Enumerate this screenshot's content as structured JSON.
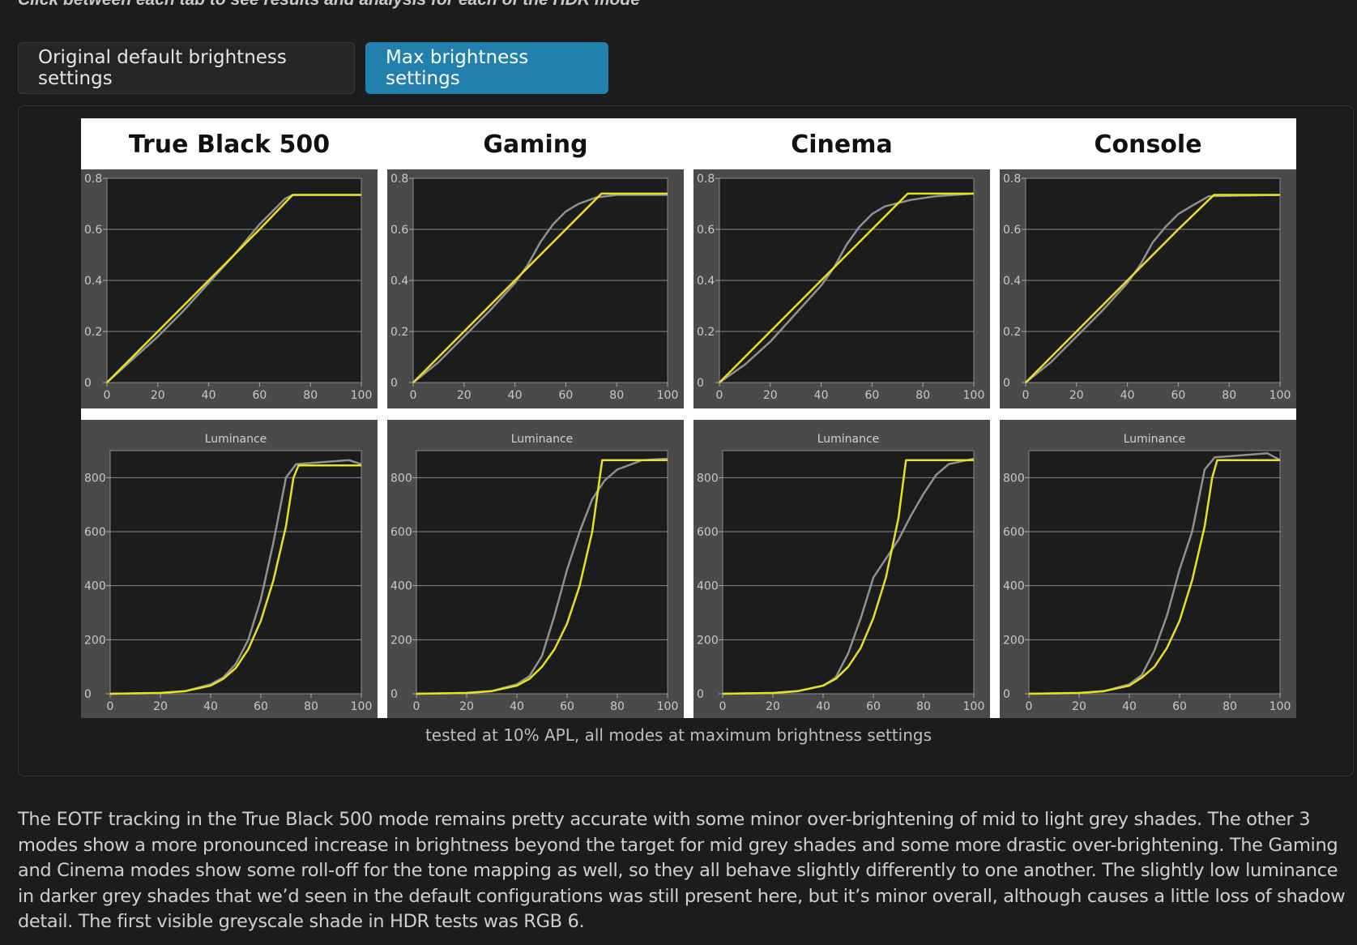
{
  "intro": "Click between each tab to see results and analysis for each of the HDR mode",
  "tabs": [
    {
      "label": "Original default brightness settings",
      "active": false
    },
    {
      "label": "Max brightness settings",
      "active": true
    }
  ],
  "caption": "tested at 10% APL, all modes at maximum brightness settings",
  "description": "The EOTF tracking in the True Black 500 mode remains pretty accurate with some minor over-brightening of mid to light grey shades. The other 3 modes show a more pronounced increase in brightness beyond the target for mid grey shades and some more drastic over-brightening. The Gaming and Cinema modes show some roll-off for the tone mapping as well, so they all behave slightly differently to one another. The slightly low luminance in darker grey shades that we’d seen in the default configurations was still present here, but it’s minor overall, although causes a little loss of shadow detail. The first visible greyscale shade in HDR tests was RGB 6.",
  "colors": {
    "target": "#e8e020",
    "measured": "#909090",
    "accent": "#2180ad"
  },
  "chart_data": [
    {
      "type": "line",
      "title": "True Black 500",
      "ylim": [
        0,
        0.8
      ],
      "xlim": [
        0,
        100
      ],
      "x_ticks": [
        0,
        20,
        40,
        60,
        80,
        100
      ],
      "y_ticks": [
        0,
        0.2,
        0.4,
        0.6,
        0.8
      ],
      "series": [
        {
          "values": [
            [
              0,
              0
            ],
            [
              10,
              0.09
            ],
            [
              20,
              0.18
            ],
            [
              30,
              0.28
            ],
            [
              40,
              0.39
            ],
            [
              50,
              0.5
            ],
            [
              60,
              0.62
            ],
            [
              70,
              0.72
            ],
            [
              73,
              0.735
            ],
            [
              100,
              0.735
            ]
          ]
        },
        {
          "values": [
            [
              0,
              0
            ],
            [
              20,
              0.2
            ],
            [
              40,
              0.4
            ],
            [
              60,
              0.6
            ],
            [
              73,
              0.735
            ],
            [
              100,
              0.735
            ]
          ]
        }
      ]
    },
    {
      "type": "line",
      "title": "Gaming",
      "ylim": [
        0,
        0.8
      ],
      "xlim": [
        0,
        100
      ],
      "x_ticks": [
        0,
        20,
        40,
        60,
        80,
        100
      ],
      "y_ticks": [
        0,
        0.2,
        0.4,
        0.6,
        0.8
      ],
      "series": [
        {
          "values": [
            [
              0,
              0
            ],
            [
              10,
              0.08
            ],
            [
              20,
              0.18
            ],
            [
              30,
              0.28
            ],
            [
              40,
              0.39
            ],
            [
              45,
              0.46
            ],
            [
              50,
              0.55
            ],
            [
              55,
              0.62
            ],
            [
              60,
              0.67
            ],
            [
              65,
              0.7
            ],
            [
              72,
              0.725
            ],
            [
              80,
              0.735
            ],
            [
              100,
              0.735
            ]
          ]
        },
        {
          "values": [
            [
              0,
              0
            ],
            [
              20,
              0.2
            ],
            [
              40,
              0.4
            ],
            [
              60,
              0.6
            ],
            [
              74,
              0.74
            ],
            [
              100,
              0.74
            ]
          ]
        }
      ]
    },
    {
      "type": "line",
      "title": "Cinema",
      "ylim": [
        0,
        0.8
      ],
      "xlim": [
        0,
        100
      ],
      "x_ticks": [
        0,
        20,
        40,
        60,
        80,
        100
      ],
      "y_ticks": [
        0,
        0.2,
        0.4,
        0.6,
        0.8
      ],
      "series": [
        {
          "values": [
            [
              0,
              0
            ],
            [
              10,
              0.07
            ],
            [
              20,
              0.16
            ],
            [
              30,
              0.27
            ],
            [
              40,
              0.38
            ],
            [
              45,
              0.45
            ],
            [
              50,
              0.54
            ],
            [
              55,
              0.61
            ],
            [
              60,
              0.66
            ],
            [
              65,
              0.69
            ],
            [
              75,
              0.715
            ],
            [
              85,
              0.73
            ],
            [
              100,
              0.74
            ]
          ]
        },
        {
          "values": [
            [
              0,
              0
            ],
            [
              20,
              0.2
            ],
            [
              40,
              0.4
            ],
            [
              60,
              0.6
            ],
            [
              74,
              0.74
            ],
            [
              100,
              0.74
            ]
          ]
        }
      ]
    },
    {
      "type": "line",
      "title": "Console",
      "ylim": [
        0,
        0.8
      ],
      "xlim": [
        0,
        100
      ],
      "x_ticks": [
        0,
        20,
        40,
        60,
        80,
        100
      ],
      "y_ticks": [
        0,
        0.2,
        0.4,
        0.6,
        0.8
      ],
      "series": [
        {
          "values": [
            [
              0,
              0
            ],
            [
              10,
              0.08
            ],
            [
              20,
              0.18
            ],
            [
              30,
              0.28
            ],
            [
              40,
              0.39
            ],
            [
              45,
              0.46
            ],
            [
              50,
              0.55
            ],
            [
              55,
              0.61
            ],
            [
              60,
              0.66
            ],
            [
              65,
              0.69
            ],
            [
              72,
              0.73
            ],
            [
              100,
              0.735
            ]
          ]
        },
        {
          "values": [
            [
              0,
              0
            ],
            [
              20,
              0.2
            ],
            [
              40,
              0.4
            ],
            [
              60,
              0.6
            ],
            [
              74,
              0.735
            ],
            [
              100,
              0.735
            ]
          ]
        }
      ]
    },
    {
      "type": "line",
      "title": "Luminance",
      "ylim": [
        0,
        900
      ],
      "xlim": [
        0,
        100
      ],
      "x_ticks": [
        0,
        20,
        40,
        60,
        80,
        100
      ],
      "y_ticks": [
        0,
        200,
        400,
        600,
        800
      ],
      "series": [
        {
          "values": [
            [
              0,
              0
            ],
            [
              20,
              3
            ],
            [
              30,
              10
            ],
            [
              40,
              35
            ],
            [
              45,
              60
            ],
            [
              50,
              110
            ],
            [
              55,
              200
            ],
            [
              60,
              350
            ],
            [
              65,
              560
            ],
            [
              70,
              800
            ],
            [
              74,
              850
            ],
            [
              95,
              865
            ],
            [
              100,
              850
            ]
          ]
        },
        {
          "values": [
            [
              0,
              0
            ],
            [
              20,
              3
            ],
            [
              30,
              10
            ],
            [
              40,
              30
            ],
            [
              45,
              55
            ],
            [
              50,
              95
            ],
            [
              55,
              165
            ],
            [
              60,
              270
            ],
            [
              65,
              420
            ],
            [
              70,
              620
            ],
            [
              73,
              800
            ],
            [
              75,
              845
            ],
            [
              100,
              845
            ]
          ]
        }
      ]
    },
    {
      "type": "line",
      "title": "Luminance",
      "ylim": [
        0,
        900
      ],
      "xlim": [
        0,
        100
      ],
      "x_ticks": [
        0,
        20,
        40,
        60,
        80,
        100
      ],
      "y_ticks": [
        0,
        200,
        400,
        600,
        800
      ],
      "series": [
        {
          "values": [
            [
              0,
              0
            ],
            [
              20,
              3
            ],
            [
              30,
              10
            ],
            [
              40,
              35
            ],
            [
              45,
              65
            ],
            [
              50,
              140
            ],
            [
              55,
              290
            ],
            [
              60,
              460
            ],
            [
              65,
              600
            ],
            [
              70,
              720
            ],
            [
              75,
              790
            ],
            [
              80,
              830
            ],
            [
              90,
              865
            ],
            [
              100,
              870
            ]
          ]
        },
        {
          "values": [
            [
              0,
              0
            ],
            [
              20,
              3
            ],
            [
              30,
              10
            ],
            [
              40,
              30
            ],
            [
              45,
              55
            ],
            [
              50,
              100
            ],
            [
              55,
              165
            ],
            [
              60,
              260
            ],
            [
              65,
              400
            ],
            [
              70,
              600
            ],
            [
              73,
              800
            ],
            [
              74,
              865
            ],
            [
              100,
              865
            ]
          ]
        }
      ]
    },
    {
      "type": "line",
      "title": "Luminance",
      "ylim": [
        0,
        900
      ],
      "xlim": [
        0,
        100
      ],
      "x_ticks": [
        0,
        20,
        40,
        60,
        80,
        100
      ],
      "y_ticks": [
        0,
        200,
        400,
        600,
        800
      ],
      "series": [
        {
          "values": [
            [
              0,
              0
            ],
            [
              20,
              3
            ],
            [
              30,
              10
            ],
            [
              40,
              30
            ],
            [
              45,
              60
            ],
            [
              50,
              150
            ],
            [
              55,
              280
            ],
            [
              60,
              430
            ],
            [
              65,
              500
            ],
            [
              70,
              570
            ],
            [
              75,
              660
            ],
            [
              80,
              740
            ],
            [
              85,
              810
            ],
            [
              90,
              850
            ],
            [
              100,
              870
            ]
          ]
        },
        {
          "values": [
            [
              0,
              0
            ],
            [
              20,
              3
            ],
            [
              30,
              10
            ],
            [
              40,
              30
            ],
            [
              45,
              55
            ],
            [
              50,
              100
            ],
            [
              55,
              170
            ],
            [
              60,
              280
            ],
            [
              65,
              430
            ],
            [
              70,
              650
            ],
            [
              73,
              865
            ],
            [
              100,
              865
            ]
          ]
        }
      ]
    },
    {
      "type": "line",
      "title": "Luminance",
      "ylim": [
        0,
        900
      ],
      "xlim": [
        0,
        100
      ],
      "x_ticks": [
        0,
        20,
        40,
        60,
        80,
        100
      ],
      "y_ticks": [
        0,
        200,
        400,
        600,
        800
      ],
      "series": [
        {
          "values": [
            [
              0,
              0
            ],
            [
              20,
              3
            ],
            [
              30,
              10
            ],
            [
              40,
              35
            ],
            [
              45,
              70
            ],
            [
              50,
              160
            ],
            [
              55,
              290
            ],
            [
              60,
              460
            ],
            [
              65,
              600
            ],
            [
              70,
              830
            ],
            [
              74,
              875
            ],
            [
              95,
              890
            ],
            [
              100,
              865
            ]
          ]
        },
        {
          "values": [
            [
              0,
              0
            ],
            [
              20,
              3
            ],
            [
              30,
              10
            ],
            [
              40,
              30
            ],
            [
              45,
              60
            ],
            [
              50,
              100
            ],
            [
              55,
              170
            ],
            [
              60,
              270
            ],
            [
              65,
              420
            ],
            [
              70,
              620
            ],
            [
              73,
              800
            ],
            [
              75,
              865
            ],
            [
              100,
              865
            ]
          ]
        }
      ]
    }
  ]
}
